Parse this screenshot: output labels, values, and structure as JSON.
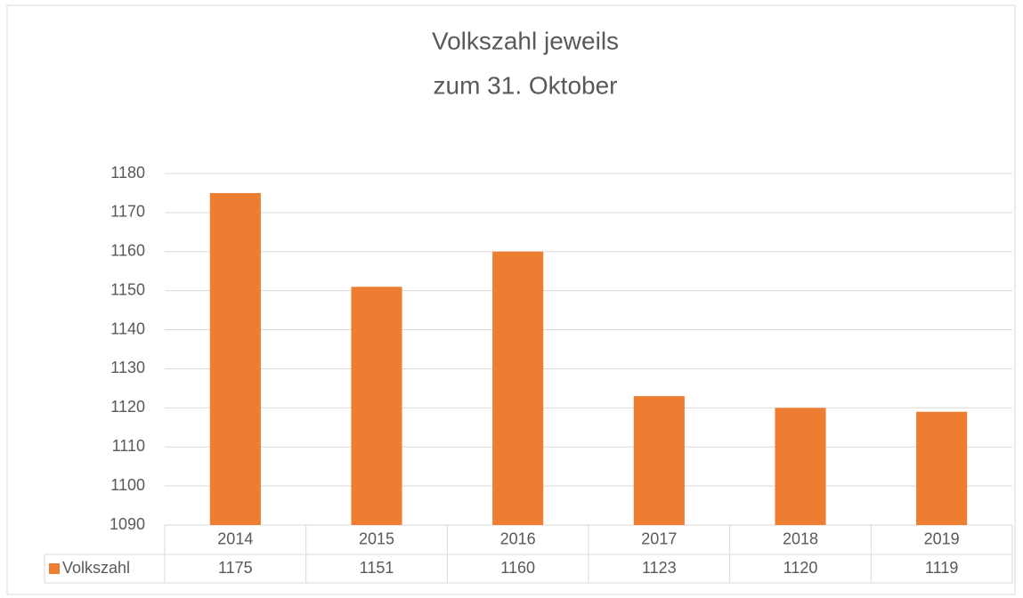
{
  "chart_data": {
    "type": "bar",
    "title": [
      "Volkszahl jeweils",
      "zum 31. Oktober"
    ],
    "categories": [
      "2014",
      "2015",
      "2016",
      "2017",
      "2018",
      "2019"
    ],
    "series": [
      {
        "name": "Volkszahl",
        "color": "#ed7d31",
        "values": [
          1175,
          1151,
          1160,
          1123,
          1120,
          1119
        ]
      }
    ],
    "ylim": [
      1090,
      1180
    ],
    "yticks": [
      1090,
      1100,
      1110,
      1120,
      1130,
      1140,
      1150,
      1160,
      1170,
      1180
    ],
    "grid": true,
    "data_table": true
  }
}
